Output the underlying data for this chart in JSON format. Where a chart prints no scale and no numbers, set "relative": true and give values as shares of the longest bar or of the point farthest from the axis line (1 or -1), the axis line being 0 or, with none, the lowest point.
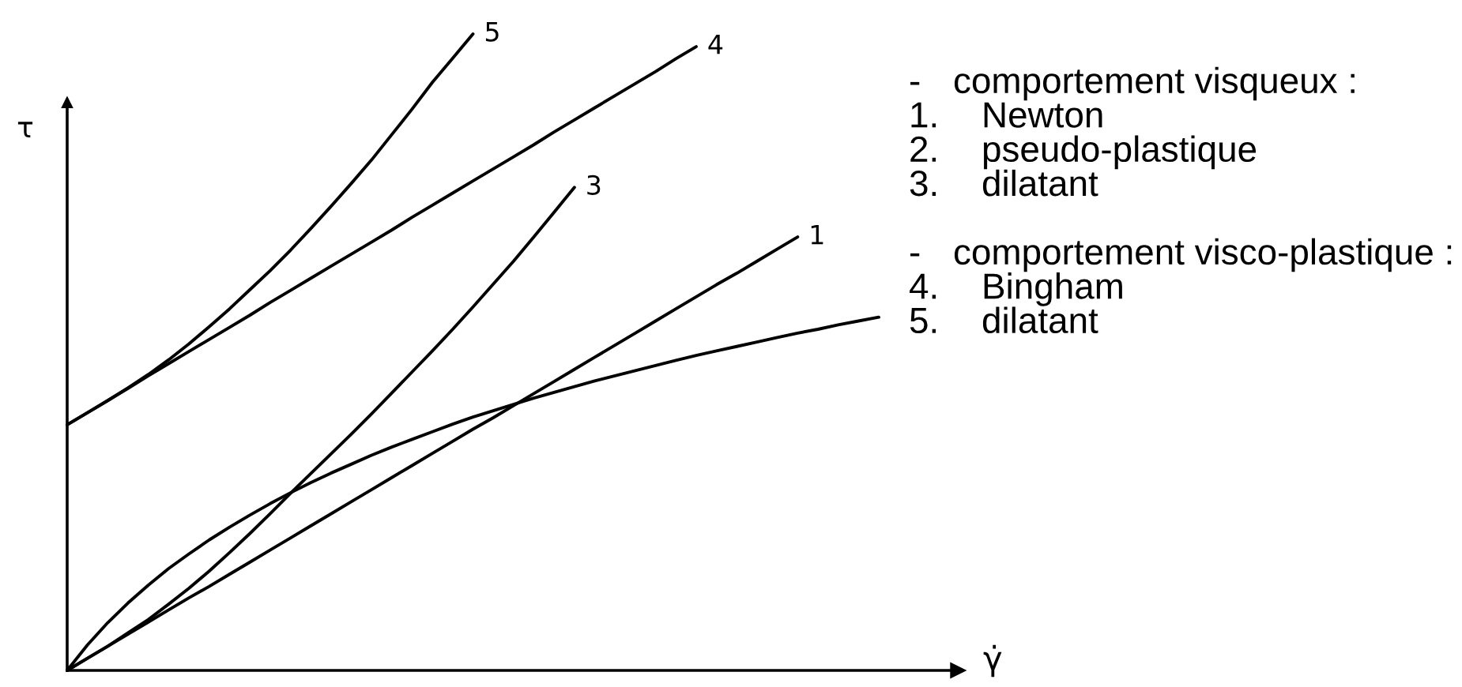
{
  "chart_data": {
    "type": "line",
    "relative": true,
    "xlabel": "γ̇",
    "ylabel": "τ",
    "categories": [
      null,
      null,
      null,
      null,
      null,
      null,
      null,
      null,
      null,
      null,
      null,
      null,
      null,
      null,
      null,
      null,
      null,
      null,
      null,
      null,
      null,
      null,
      null,
      null,
      null,
      null,
      null,
      null,
      null,
      null,
      null,
      null,
      null,
      null,
      null,
      null,
      null,
      null,
      null,
      null,
      null
    ],
    "series": [
      {
        "name": "1",
        "color": "#000000",
        "values": [
          0,
          0.019,
          0.038,
          0.057,
          0.076,
          0.095,
          0.114,
          0.132,
          0.151,
          0.17,
          0.189,
          0.208,
          0.227,
          0.246,
          0.265,
          0.284,
          0.303,
          0.322,
          0.341,
          0.36,
          0.379,
          0.397,
          0.416,
          0.435,
          0.454,
          0.473,
          0.492,
          0.511,
          0.53,
          0.549,
          0.568,
          0.587,
          0.606,
          0.624,
          0.643,
          0.662,
          0.681,
          null,
          null,
          null,
          null
        ]
      },
      {
        "color": "#000000",
        "values": [
          0,
          0.04,
          0.075,
          0.106,
          0.134,
          0.16,
          0.183,
          0.205,
          0.225,
          0.244,
          0.262,
          0.279,
          0.295,
          0.31,
          0.324,
          0.338,
          0.351,
          0.363,
          0.375,
          0.387,
          0.398,
          0.408,
          0.418,
          0.428,
          0.437,
          0.446,
          0.455,
          0.463,
          0.471,
          0.479,
          0.487,
          0.495,
          0.502,
          0.509,
          0.516,
          0.523,
          0.53,
          0.536,
          0.543,
          0.549,
          0.555
        ]
      },
      {
        "name": "3",
        "color": "#000000",
        "values": [
          0,
          0.019,
          0.038,
          0.059,
          0.08,
          0.104,
          0.129,
          0.156,
          0.185,
          0.215,
          0.246,
          0.278,
          0.309,
          0.34,
          0.371,
          0.403,
          0.436,
          0.469,
          0.502,
          0.536,
          0.571,
          0.607,
          0.643,
          0.681,
          0.72,
          0.759,
          null,
          null,
          null,
          null,
          null,
          null,
          null,
          null,
          null,
          null,
          null,
          null,
          null,
          null,
          null
        ]
      },
      {
        "name": "4",
        "color": "#000000",
        "values": [
          0.386,
          0.405,
          0.424,
          0.443,
          0.463,
          0.482,
          0.501,
          0.52,
          0.539,
          0.558,
          0.578,
          0.597,
          0.616,
          0.635,
          0.654,
          0.673,
          0.692,
          0.712,
          0.731,
          0.75,
          0.769,
          0.788,
          0.807,
          0.826,
          0.846,
          0.865,
          0.884,
          0.903,
          0.922,
          0.941,
          0.961,
          0.98,
          null,
          null,
          null,
          null,
          null,
          null,
          null,
          null,
          null
        ]
      },
      {
        "name": "5",
        "color": "#000000",
        "values": [
          0.386,
          0.405,
          0.424,
          0.444,
          0.465,
          0.488,
          0.513,
          0.54,
          0.568,
          0.598,
          0.628,
          0.66,
          0.694,
          0.729,
          0.765,
          0.802,
          0.842,
          0.882,
          0.924,
          0.962,
          1.0,
          null,
          null,
          null,
          null,
          null,
          null,
          null,
          null,
          null,
          null,
          null,
          null,
          null,
          null,
          null,
          null,
          null,
          null,
          null,
          null
        ]
      }
    ],
    "annotations": [
      "-\tcomportement visqueux :\n1.\tNewton\n2.\tpseudo-plastique\n3.\tdilatant",
      "-\tcomportement visco-plastique :\n4.\tBingham\n5.\tdilatant"
    ]
  }
}
